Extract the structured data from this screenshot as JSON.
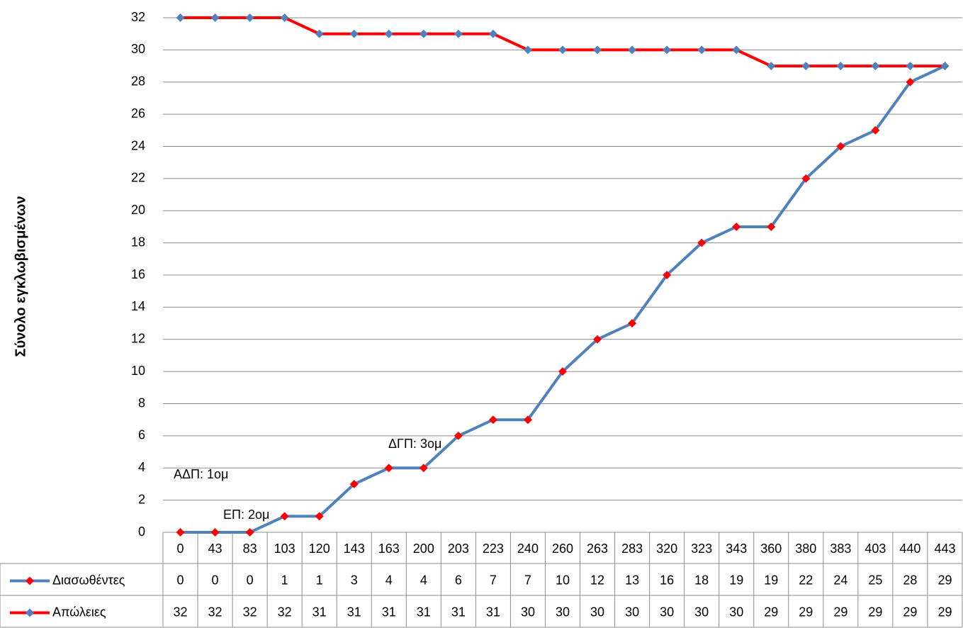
{
  "chart_data": {
    "type": "line",
    "y_label": "Σύνολο εγκλωβισμένων",
    "categories": [
      "0",
      "43",
      "83",
      "103",
      "120",
      "143",
      "163",
      "200",
      "203",
      "223",
      "240",
      "260",
      "263",
      "283",
      "320",
      "323",
      "343",
      "360",
      "380",
      "383",
      "403",
      "440",
      "443"
    ],
    "series": [
      {
        "name": "Διασωθέντες",
        "color": "#4f81bd",
        "marker_color": "#ff0000",
        "values": [
          0,
          0,
          0,
          1,
          1,
          3,
          4,
          4,
          6,
          7,
          7,
          10,
          12,
          13,
          16,
          18,
          19,
          19,
          22,
          24,
          25,
          28,
          29
        ]
      },
      {
        "name": "Απώλειες",
        "color": "#ff0000",
        "marker_color": "#4f81bd",
        "values": [
          32,
          32,
          32,
          32,
          31,
          31,
          31,
          31,
          31,
          31,
          30,
          30,
          30,
          30,
          30,
          30,
          30,
          29,
          29,
          29,
          29,
          29,
          29
        ]
      }
    ],
    "ylim": [
      0,
      32
    ],
    "yticks": [
      0,
      2,
      4,
      6,
      8,
      10,
      12,
      14,
      16,
      18,
      20,
      22,
      24,
      26,
      28,
      30,
      32
    ],
    "grid": true,
    "annotations": [
      "ΑΔΠ: 1ομ",
      "ΕΠ: 2ομ",
      "ΔΓΠ: 3ομ"
    ]
  }
}
